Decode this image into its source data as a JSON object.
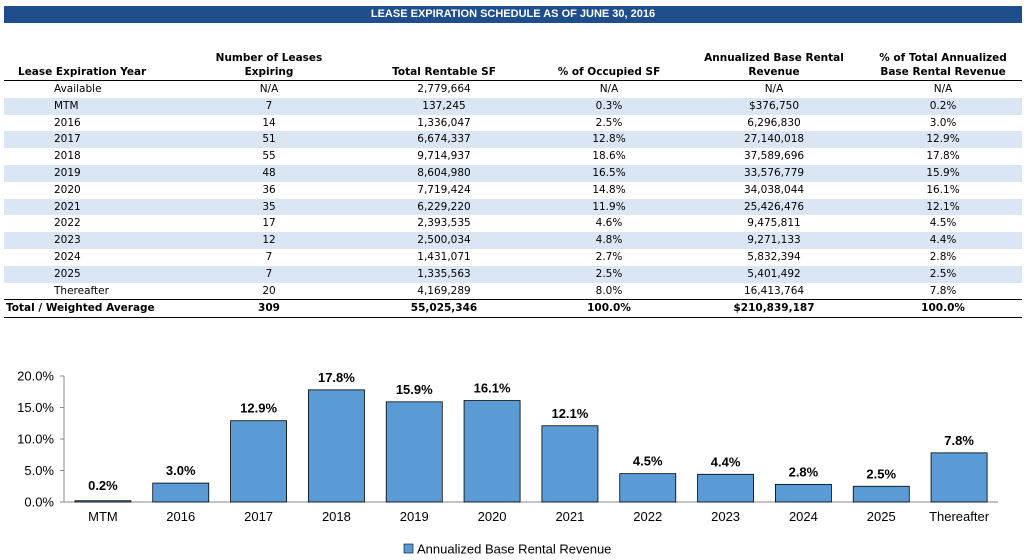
{
  "table": {
    "title": "LEASE EXPIRATION SCHEDULE AS OF JUNE 30, 2016",
    "headers": [
      [
        "Lease Expiration Year"
      ],
      [
        "Number of Leases",
        "Expiring"
      ],
      [
        "Total Rentable SF"
      ],
      [
        "% of Occupied SF"
      ],
      [
        "Annualized Base Rental",
        "Revenue"
      ],
      [
        "% of Total Annualized",
        "Base Rental Revenue"
      ]
    ],
    "rows": [
      [
        "Available",
        "N/A",
        "2,779,664",
        "N/A",
        "N/A",
        "N/A"
      ],
      [
        "MTM",
        "7",
        "137,245",
        "0.3%",
        "$376,750",
        "0.2%"
      ],
      [
        "2016",
        "14",
        "1,336,047",
        "2.5%",
        "6,296,830",
        "3.0%"
      ],
      [
        "2017",
        "51",
        "6,674,337",
        "12.8%",
        "27,140,018",
        "12.9%"
      ],
      [
        "2018",
        "55",
        "9,714,937",
        "18.6%",
        "37,589,696",
        "17.8%"
      ],
      [
        "2019",
        "48",
        "8,604,980",
        "16.5%",
        "33,576,779",
        "15.9%"
      ],
      [
        "2020",
        "36",
        "7,719,424",
        "14.8%",
        "34,038,044",
        "16.1%"
      ],
      [
        "2021",
        "35",
        "6,229,220",
        "11.9%",
        "25,426,476",
        "12.1%"
      ],
      [
        "2022",
        "17",
        "2,393,535",
        "4.6%",
        "9,475,811",
        "4.5%"
      ],
      [
        "2023",
        "12",
        "2,500,034",
        "4.8%",
        "9,271,133",
        "4.4%"
      ],
      [
        "2024",
        "7",
        "1,431,071",
        "2.7%",
        "5,832,394",
        "2.8%"
      ],
      [
        "2025",
        "7",
        "1,335,563",
        "2.5%",
        "5,401,492",
        "2.5%"
      ],
      [
        "Thereafter",
        "20",
        "4,169,289",
        "8.0%",
        "16,413,764",
        "7.8%"
      ]
    ],
    "total": [
      "Total / Weighted Average",
      "309",
      "55,025,346",
      "100.0%",
      "$210,839,187",
      "100.0%"
    ]
  },
  "chart_data": {
    "type": "bar",
    "categories": [
      "MTM",
      "2016",
      "2017",
      "2018",
      "2019",
      "2020",
      "2021",
      "2022",
      "2023",
      "2024",
      "2025",
      "Thereafter"
    ],
    "series": [
      {
        "name": "Annualized Base Rental Revenue",
        "values": [
          0.2,
          3.0,
          12.9,
          17.8,
          15.9,
          16.1,
          12.1,
          4.5,
          4.4,
          2.8,
          2.5,
          7.8
        ],
        "labels": [
          "0.2%",
          "3.0%",
          "12.9%",
          "17.8%",
          "15.9%",
          "16.1%",
          "12.1%",
          "4.5%",
          "4.4%",
          "2.8%",
          "2.5%",
          "7.8%"
        ]
      }
    ],
    "ylim": [
      0,
      20
    ],
    "yticks": [
      "0.0%",
      "5.0%",
      "10.0%",
      "15.0%",
      "20.0%"
    ],
    "ytick_values": [
      0,
      5,
      10,
      15,
      20
    ],
    "grid": false,
    "legend_position": "bottom-center",
    "bar_color": "#5b9bd5"
  }
}
